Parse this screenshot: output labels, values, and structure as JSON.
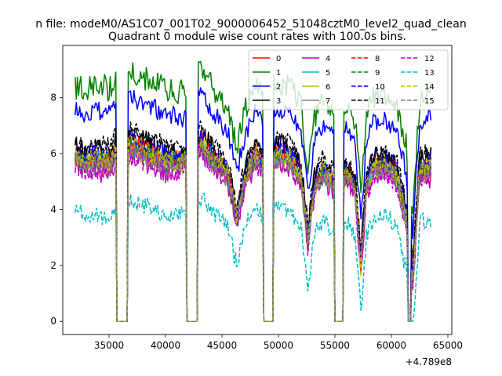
{
  "figure": {
    "suptitle": "n file: modeM0/AS1C07_001T02_9000006452_51048cztM0_level2_quad_clean",
    "title": "Quadrant 0 module wise count rates with 100.0s bins."
  },
  "chart_data": {
    "type": "line",
    "title": "Quadrant 0 module wise count rates with 100.0s bins.",
    "xlabel": "",
    "ylabel": "",
    "x_offset_label": "+4.789e8",
    "xlim": [
      30900,
      65350
    ],
    "ylim": [
      -0.47,
      9.87
    ],
    "x_ticks": [
      35000,
      40000,
      45000,
      50000,
      55000,
      60000,
      65000
    ],
    "x_tick_labels": [
      "35000",
      "40000",
      "45000",
      "50000",
      "55000",
      "60000",
      "65000"
    ],
    "y_ticks": [
      0,
      2,
      4,
      6,
      8
    ],
    "y_tick_labels": [
      "0",
      "2",
      "4",
      "6",
      "8"
    ],
    "grid": false,
    "legend_position": "top-right",
    "legend_columns": 4,
    "x_start": 32000,
    "x_end": 63500,
    "bin_size": 100,
    "gaps": [
      [
        35650,
        36650
      ],
      [
        41850,
        42900
      ],
      [
        48650,
        49550
      ],
      [
        54900,
        55800
      ],
      [
        61400,
        61750
      ]
    ],
    "envelope": [
      {
        "x": 32000,
        "low": 5.2,
        "high": 6.5
      },
      {
        "x": 33000,
        "low": 5.0,
        "high": 6.4
      },
      {
        "x": 34000,
        "low": 5.0,
        "high": 6.6
      },
      {
        "x": 35000,
        "low": 4.9,
        "high": 6.4
      },
      {
        "x": 35500,
        "low": 5.2,
        "high": 6.8
      },
      {
        "x": 37000,
        "low": 5.5,
        "high": 7.0
      },
      {
        "x": 38500,
        "low": 5.3,
        "high": 6.7
      },
      {
        "x": 40000,
        "low": 5.0,
        "high": 6.4
      },
      {
        "x": 41500,
        "low": 5.1,
        "high": 6.3
      },
      {
        "x": 43200,
        "low": 5.6,
        "high": 7.1
      },
      {
        "x": 44500,
        "low": 5.0,
        "high": 6.3
      },
      {
        "x": 45500,
        "low": 4.7,
        "high": 5.8
      },
      {
        "x": 46300,
        "low": 3.2,
        "high": 4.3
      },
      {
        "x": 47000,
        "low": 4.5,
        "high": 5.6
      },
      {
        "x": 48000,
        "low": 5.4,
        "high": 6.6
      },
      {
        "x": 48500,
        "low": 5.0,
        "high": 6.2
      },
      {
        "x": 49800,
        "low": 5.2,
        "high": 6.6
      },
      {
        "x": 51000,
        "low": 5.2,
        "high": 6.5
      },
      {
        "x": 52000,
        "low": 4.5,
        "high": 5.8
      },
      {
        "x": 52600,
        "low": 2.4,
        "high": 3.6
      },
      {
        "x": 53200,
        "low": 4.3,
        "high": 5.4
      },
      {
        "x": 54000,
        "low": 4.8,
        "high": 6.0
      },
      {
        "x": 54700,
        "low": 4.4,
        "high": 5.6
      },
      {
        "x": 56000,
        "low": 4.8,
        "high": 5.9
      },
      {
        "x": 56800,
        "low": 4.3,
        "high": 5.3
      },
      {
        "x": 57300,
        "low": 1.5,
        "high": 2.6
      },
      {
        "x": 57800,
        "low": 4.3,
        "high": 5.5
      },
      {
        "x": 58500,
        "low": 4.9,
        "high": 6.2
      },
      {
        "x": 59500,
        "low": 5.0,
        "high": 6.2
      },
      {
        "x": 60500,
        "low": 4.6,
        "high": 5.8
      },
      {
        "x": 61300,
        "low": 3.0,
        "high": 4.4
      },
      {
        "x": 61900,
        "low": 0.8,
        "high": 2.2
      },
      {
        "x": 62500,
        "low": 4.8,
        "high": 6.0
      },
      {
        "x": 63500,
        "low": 4.8,
        "high": 6.3
      }
    ],
    "series": [
      {
        "name": "0",
        "color": "#ff0000",
        "dash": "solid",
        "level": 0.55,
        "offset": 0.0,
        "noise": 0.35,
        "seed": 1
      },
      {
        "name": "1",
        "color": "#008000",
        "dash": "solid",
        "level": 1.0,
        "offset": 1.9,
        "noise": 0.45,
        "seed": 2
      },
      {
        "name": "2",
        "color": "#0000ff",
        "dash": "solid",
        "level": 1.0,
        "offset": 1.0,
        "noise": 0.35,
        "seed": 3
      },
      {
        "name": "3",
        "color": "#000000",
        "dash": "solid",
        "level": 0.8,
        "offset": 0.0,
        "noise": 0.35,
        "seed": 4
      },
      {
        "name": "4",
        "color": "#bf00bf",
        "dash": "solid",
        "level": 0.25,
        "offset": 0.0,
        "noise": 0.4,
        "seed": 5
      },
      {
        "name": "5",
        "color": "#00bfbf",
        "dash": "solid",
        "level": 0.5,
        "offset": 0.0,
        "noise": 0.35,
        "seed": 6
      },
      {
        "name": "6",
        "color": "#bfbf00",
        "dash": "solid",
        "level": 0.45,
        "offset": 0.0,
        "noise": 0.4,
        "seed": 7
      },
      {
        "name": "7",
        "color": "#808080",
        "dash": "solid",
        "level": 0.35,
        "offset": 0.0,
        "noise": 0.35,
        "seed": 8
      },
      {
        "name": "8",
        "color": "#ff0000",
        "dash": "dashed",
        "level": 0.6,
        "offset": 0.0,
        "noise": 0.35,
        "seed": 9
      },
      {
        "name": "9",
        "color": "#008000",
        "dash": "dashed",
        "level": 0.5,
        "offset": 0.0,
        "noise": 0.35,
        "seed": 10
      },
      {
        "name": "10",
        "color": "#0000ff",
        "dash": "dashed",
        "level": 0.7,
        "offset": 0.0,
        "noise": 0.35,
        "seed": 11
      },
      {
        "name": "11",
        "color": "#000000",
        "dash": "dashed",
        "level": 0.9,
        "offset": 0.0,
        "noise": 0.35,
        "seed": 12
      },
      {
        "name": "12",
        "color": "#bf00bf",
        "dash": "dashed",
        "level": 0.3,
        "offset": 0.0,
        "noise": 0.4,
        "seed": 13
      },
      {
        "name": "13",
        "color": "#00bfbf",
        "dash": "dashed",
        "level": 0.0,
        "offset": -1.2,
        "noise": 0.3,
        "seed": 14
      },
      {
        "name": "14",
        "color": "#bfbf00",
        "dash": "dashed",
        "level": 0.55,
        "offset": 0.0,
        "noise": 0.35,
        "seed": 15
      },
      {
        "name": "15",
        "color": "#808080",
        "dash": "dashed",
        "level": 0.45,
        "offset": 0.0,
        "noise": 0.35,
        "seed": 16
      }
    ]
  }
}
